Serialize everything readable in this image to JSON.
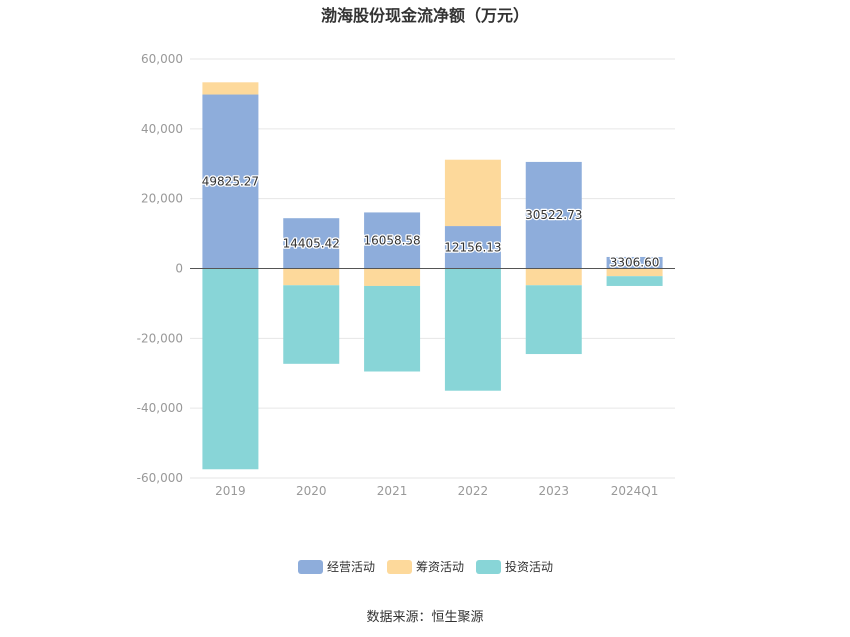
{
  "chart_data": {
    "type": "bar",
    "stacked": true,
    "title": "渤海股份现金流净额（万元）",
    "categories": [
      "2019",
      "2020",
      "2021",
      "2022",
      "2023",
      "2024Q1"
    ],
    "series": [
      {
        "name": "经营活动",
        "color": "#8eaddb",
        "values": [
          49825.27,
          14405.42,
          16058.58,
          12156.13,
          30522.73,
          3306.6
        ],
        "labels": [
          "49825.27",
          "14405.42",
          "16058.58",
          "12156.13",
          "30522.73",
          "3306.60"
        ]
      },
      {
        "name": "筹资活动",
        "color": "#fdd99b",
        "values": [
          3500,
          -4800,
          -5000,
          19000,
          -4800,
          -2200
        ]
      },
      {
        "name": "投资活动",
        "color": "#88d5d7",
        "values": [
          -57500,
          -22500,
          -24500,
          -35000,
          -19700,
          -2800
        ]
      }
    ],
    "ylim": [
      -60000,
      60000
    ],
    "yticks": [
      -60000,
      -40000,
      -20000,
      0,
      20000,
      40000,
      60000
    ],
    "ytick_labels": [
      "-60,000",
      "-40,000",
      "-20,000",
      "0",
      "20,000",
      "40,000",
      "60,000"
    ],
    "grid": true,
    "legend_position": "bottom-center",
    "source": "数据来源：恒生聚源"
  }
}
